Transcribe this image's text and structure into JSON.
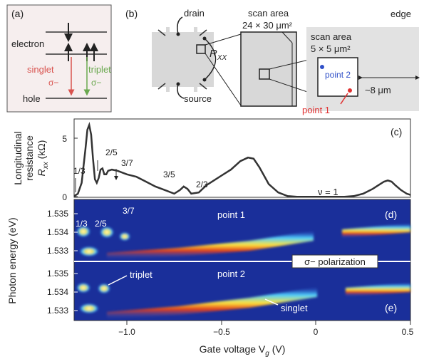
{
  "panel_a": {
    "label": "(a)",
    "electron": "electron",
    "hole": "hole",
    "singlet": "singlet",
    "singlet_pol": "σ−",
    "triplet": "triplet",
    "triplet_pol": "σ−"
  },
  "panel_b": {
    "label": "(b)",
    "drain": "drain",
    "source": "source",
    "rxx": "R",
    "rxx_sub": "XX",
    "scan_large_line1": "scan area",
    "scan_large_line2": "24 × 30 μm²",
    "scan_small_line1": "scan area",
    "scan_small_line2": "5 × 5 μm²",
    "edge": "edge",
    "distance": "~8 μm",
    "point1": "point 1",
    "point2": "point 2"
  },
  "panel_c": {
    "label": "(c)",
    "ylabel_line1": "Longitudinal",
    "ylabel_line2": "resistance",
    "ylabel_line3": "R",
    "ylabel_sub": "xx",
    "ylabel_unit": " (kΩ)",
    "yticks": [
      "5",
      "0"
    ],
    "fractions": [
      "1/3",
      "2/5",
      "3/7",
      "3/5",
      "2/3",
      "ν = 1"
    ]
  },
  "panel_d": {
    "label": "(d)",
    "point": "point 1",
    "fractions": [
      "1/3",
      "2/5",
      "3/7"
    ],
    "yticks": [
      "1.535",
      "1.534",
      "1.533"
    ]
  },
  "panel_e": {
    "label": "(e)",
    "point": "point 2",
    "triplet": "triplet",
    "singlet": "singlet",
    "yticks": [
      "1.535",
      "1.534",
      "1.533"
    ]
  },
  "polarization": "σ− polarization",
  "shared": {
    "ylabel_photon": "Photon energy (eV)",
    "xlabel": "Gate voltage V",
    "xlabel_sub": "g",
    "xlabel_unit": " (V)",
    "xticks": [
      "−1.0",
      "−0.5",
      "0",
      "0.5"
    ]
  },
  "colors": {
    "red_arrow": "#d9534f",
    "green_arrow": "#6aa84f",
    "blue_point": "#3050c8",
    "red_point": "#e03030",
    "map_bg": "#1a2f9a",
    "curve": "#333333",
    "gray_fill": "#d8d8d8"
  },
  "chart_data": {
    "type": "line",
    "xlabel": "Gate voltage Vg (V)",
    "ylabel": "Longitudinal resistance Rxx (kΩ)",
    "xlim": [
      -1.28,
      0.5
    ],
    "ylim": [
      0,
      6.5
    ],
    "x": [
      -1.28,
      -1.26,
      -1.24,
      -1.22,
      -1.21,
      -1.2,
      -1.19,
      -1.18,
      -1.17,
      -1.16,
      -1.15,
      -1.14,
      -1.13,
      -1.12,
      -1.11,
      -1.1,
      -1.08,
      -1.05,
      -1.0,
      -0.95,
      -0.9,
      -0.85,
      -0.8,
      -0.75,
      -0.72,
      -0.7,
      -0.68,
      -0.66,
      -0.62,
      -0.58,
      -0.5,
      -0.45,
      -0.4,
      -0.36,
      -0.33,
      -0.3,
      -0.25,
      -0.2,
      -0.15,
      -0.1,
      -0.05,
      0.0,
      0.05,
      0.1,
      0.15,
      0.2,
      0.25,
      0.3,
      0.33,
      0.36,
      0.38,
      0.4,
      0.42,
      0.45,
      0.48,
      0.5
    ],
    "y": [
      0.1,
      0.3,
      1.2,
      4.0,
      5.6,
      6.0,
      5.2,
      3.2,
      1.5,
      1.2,
      1.6,
      2.3,
      2.4,
      1.9,
      1.9,
      2.2,
      2.3,
      2.2,
      1.9,
      1.7,
      1.3,
      0.9,
      0.6,
      0.3,
      0.6,
      0.9,
      0.7,
      0.3,
      0.4,
      1.0,
      1.8,
      2.3,
      3.0,
      3.3,
      3.2,
      2.5,
      1.1,
      0.4,
      0.1,
      0.05,
      0.05,
      0.05,
      0.05,
      0.05,
      0.05,
      0.1,
      0.3,
      0.7,
      1.0,
      1.3,
      1.4,
      1.3,
      1.0,
      0.6,
      0.3,
      0.2
    ]
  }
}
